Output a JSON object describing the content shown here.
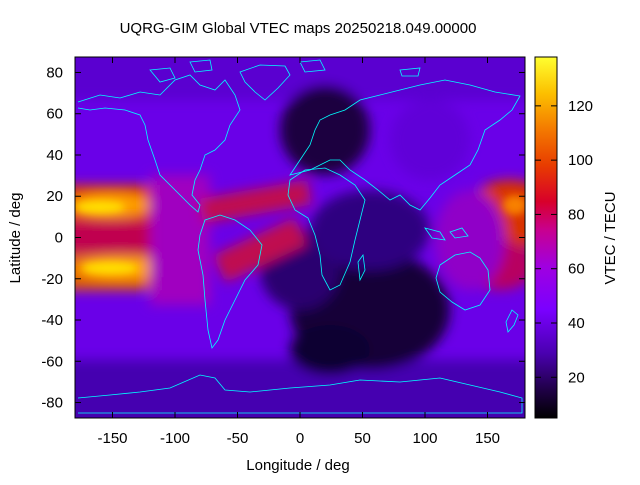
{
  "title": "UQRG-GIM Global VTEC maps 20250218.049.00000",
  "map": {
    "xlabel": "Longitude / deg",
    "ylabel": "Latitude / deg",
    "xlim": [
      -180,
      180
    ],
    "ylim": [
      -87.5,
      87.5
    ],
    "xticks": [
      "-150",
      "-100",
      "-50",
      "0",
      "50",
      "100",
      "150"
    ],
    "yticks": [
      "80",
      "60",
      "40",
      "20",
      "0",
      "-20",
      "-40",
      "-60",
      "-80"
    ],
    "coastline_color": "#00ffff",
    "colormap": [
      "#000000",
      "#1a0050",
      "#4b00b8",
      "#8a00ff",
      "#b000d0",
      "#d8002a",
      "#ec5200",
      "#f8a000",
      "#ffe000",
      "#ffff40"
    ]
  },
  "colorbar": {
    "label": "VTEC / TECU",
    "ticks": [
      "120",
      "100",
      "80",
      "60",
      "40",
      "20"
    ],
    "range": [
      5,
      138
    ]
  }
}
